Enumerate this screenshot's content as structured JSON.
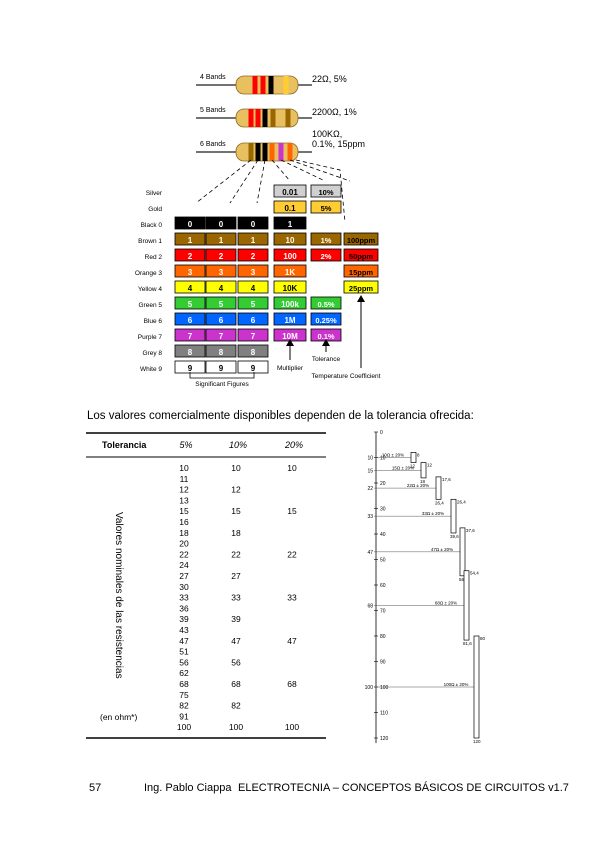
{
  "colors": {
    "black": "#000000",
    "brown": "#996600",
    "red": "#ff0000",
    "orange": "#ff6600",
    "yellow": "#ffff00",
    "green": "#33cc33",
    "blue": "#0066ff",
    "purple": "#cc33cc",
    "grey": "#808080",
    "white": "#ffffff",
    "gold": "#ffcc33",
    "silver": "#d0d0d0",
    "resistor_body": "#e8c060"
  },
  "resistor_diagram": {
    "resistors": [
      {
        "label": "4 Bands",
        "value": "22Ω, 5%",
        "bands": [
          "red",
          "red",
          "black",
          "gold"
        ]
      },
      {
        "label": "5 Bands",
        "value": "2200Ω, 1%",
        "bands": [
          "red",
          "red",
          "black",
          "brown",
          "brown"
        ]
      },
      {
        "label": "6 Bands",
        "value_line1": "100KΩ,",
        "value_line2": "0.1%, 15ppm",
        "bands": [
          "brown",
          "black",
          "black",
          "orange",
          "purple",
          "orange"
        ]
      }
    ],
    "rows": [
      {
        "label": "Silver",
        "color": "silver",
        "digits": [
          "",
          "",
          ""
        ],
        "multiplier": "0.01",
        "tolerance": "10%",
        "tempco": ""
      },
      {
        "label": "Gold",
        "color": "gold",
        "digits": [
          "",
          "",
          ""
        ],
        "multiplier": "0.1",
        "tolerance": "5%",
        "tempco": ""
      },
      {
        "label": "Black 0",
        "color": "black",
        "digits": [
          "0",
          "0",
          "0"
        ],
        "multiplier": "1",
        "tolerance": "",
        "tempco": ""
      },
      {
        "label": "Brown 1",
        "color": "brown",
        "digits": [
          "1",
          "1",
          "1"
        ],
        "multiplier": "10",
        "tolerance": "1%",
        "tempco": "100ppm"
      },
      {
        "label": "Red 2",
        "color": "red",
        "digits": [
          "2",
          "2",
          "2"
        ],
        "multiplier": "100",
        "tolerance": "2%",
        "tempco": "50ppm"
      },
      {
        "label": "Orange 3",
        "color": "orange",
        "digits": [
          "3",
          "3",
          "3"
        ],
        "multiplier": "1K",
        "tolerance": "",
        "tempco": "15ppm"
      },
      {
        "label": "Yellow 4",
        "color": "yellow",
        "digits": [
          "4",
          "4",
          "4"
        ],
        "multiplier": "10K",
        "tolerance": "",
        "tempco": "25ppm"
      },
      {
        "label": "Green 5",
        "color": "green",
        "digits": [
          "5",
          "5",
          "5"
        ],
        "multiplier": "100k",
        "tolerance": "0.5%",
        "tempco": ""
      },
      {
        "label": "Blue 6",
        "color": "blue",
        "digits": [
          "6",
          "6",
          "6"
        ],
        "multiplier": "1M",
        "tolerance": "0.25%",
        "tempco": ""
      },
      {
        "label": "Purple 7",
        "color": "purple",
        "digits": [
          "7",
          "7",
          "7"
        ],
        "multiplier": "10M",
        "tolerance": "0.1%",
        "tempco": ""
      },
      {
        "label": "Grey 8",
        "color": "grey",
        "digits": [
          "8",
          "8",
          "8"
        ],
        "multiplier": "",
        "tolerance": "",
        "tempco": ""
      },
      {
        "label": "White 9",
        "color": "white",
        "digits": [
          "9",
          "9",
          "9"
        ],
        "multiplier": "",
        "tolerance": "",
        "tempco": ""
      }
    ],
    "legend": {
      "significant": "Significant Figures",
      "multiplier": "Multiplier",
      "tolerance": "Tolerance",
      "tempco": "Temperature Coefficient"
    }
  },
  "caption": "Los valores comercialmente disponibles dependen de la tolerancia ofrecida:",
  "tolerance_table": {
    "header": "Tolerancia",
    "columns": [
      "5%",
      "10%",
      "20%"
    ],
    "side_label": "Valores nominales de las resistencias",
    "unit_label": "(en ohm*)",
    "col5": [
      "10",
      "11",
      "12",
      "13",
      "15",
      "16",
      "18",
      "20",
      "22",
      "24",
      "27",
      "30",
      "33",
      "36",
      "39",
      "43",
      "47",
      "51",
      "56",
      "62",
      "68",
      "75",
      "82",
      "91",
      "100"
    ],
    "col10": [
      "10",
      "12",
      "15",
      "18",
      "22",
      "27",
      "33",
      "39",
      "47",
      "56",
      "68",
      "82",
      "100"
    ],
    "col20": [
      "10",
      "15",
      "22",
      "33",
      "47",
      "68",
      "100"
    ]
  },
  "scale_diagram": {
    "tick_labels": [
      "0",
      "10",
      "20",
      "30",
      "40",
      "50",
      "60",
      "70",
      "80",
      "90",
      "100",
      "110",
      "120"
    ],
    "left_labels": [
      "10",
      "15",
      "22",
      "33",
      "47",
      "68",
      "100"
    ],
    "line_labels": [
      "10Ω ± 20%",
      "15Ω ± 20%",
      "22Ω ± 20%",
      "33Ω ± 20%",
      "47Ω ± 20%",
      "68Ω ± 20%",
      "100Ω ± 20%"
    ],
    "ranges": [
      {
        "top": "8",
        "bottom": "12"
      },
      {
        "top": "12",
        "bottom": "18"
      },
      {
        "top": "17,6",
        "bottom": "26,4"
      },
      {
        "top": "26,4",
        "bottom": "39,6"
      },
      {
        "top": "37,6",
        "bottom": "56,4"
      },
      {
        "top": "54,4",
        "bottom": "81,6"
      },
      {
        "top": "80",
        "bottom": "120"
      }
    ]
  },
  "footer": {
    "page": "57",
    "author": "Ing. Pablo Ciappa",
    "title": "ELECTROTECNIA – CONCEPTOS BÁSICOS DE CIRCUITOS v1.7"
  }
}
